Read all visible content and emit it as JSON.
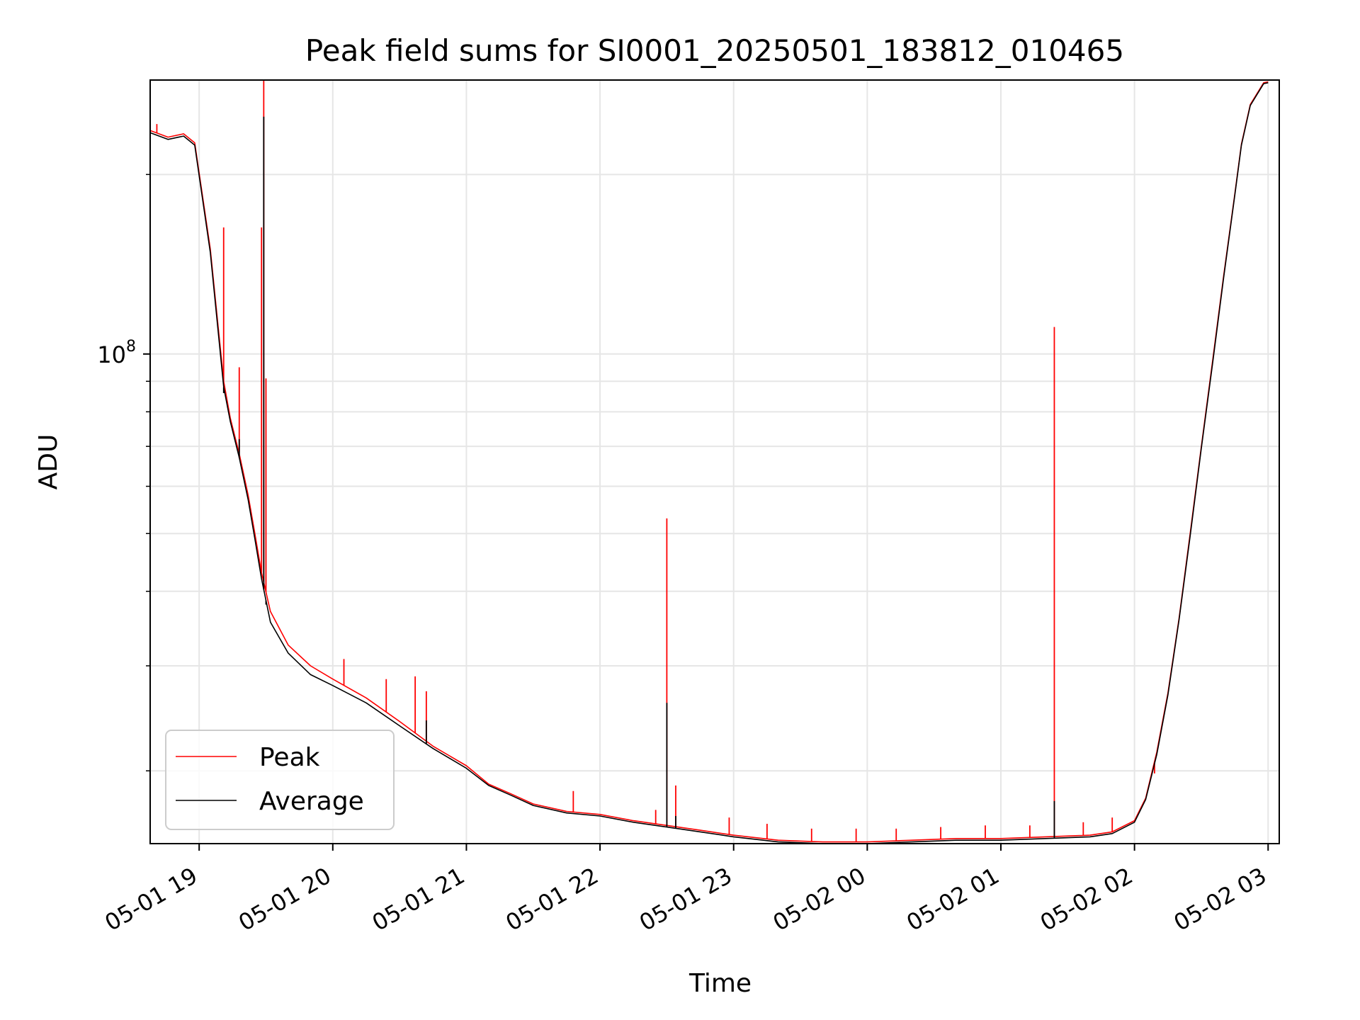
{
  "chart_data": {
    "type": "line",
    "title": "Peak field sums for SI0001_20250501_183812_010465",
    "xlabel": "Time",
    "ylabel": "ADU",
    "yscale": "log",
    "grid": true,
    "legend_position": "lower-left",
    "xlim": [
      "2025-05-01 18:38",
      "2025-05-02 03:05"
    ],
    "ylim": [
      15100000,
      288000000
    ],
    "x_ticks": [
      {
        "x": "2025-05-01 19:00",
        "label": "05-01 19"
      },
      {
        "x": "2025-05-01 20:00",
        "label": "05-01 20"
      },
      {
        "x": "2025-05-01 21:00",
        "label": "05-01 21"
      },
      {
        "x": "2025-05-01 22:00",
        "label": "05-01 22"
      },
      {
        "x": "2025-05-01 23:00",
        "label": "05-01 23"
      },
      {
        "x": "2025-05-02 00:00",
        "label": "05-02 00"
      },
      {
        "x": "2025-05-02 01:00",
        "label": "05-02 01"
      },
      {
        "x": "2025-05-02 02:00",
        "label": "05-02 02"
      },
      {
        "x": "2025-05-02 03:00",
        "label": "05-02 03"
      }
    ],
    "y_major_ticks": [
      {
        "value": 100000000,
        "label_base": "10",
        "label_exp": "8"
      }
    ],
    "y_minor_ticks": [
      20000000,
      30000000,
      40000000,
      50000000,
      60000000,
      70000000,
      80000000,
      90000000,
      200000000
    ],
    "series": [
      {
        "name": "Peak",
        "color": "#ff0000",
        "x": [
          "2025-05-01 18:38",
          "2025-05-01 18:46",
          "2025-05-01 18:53",
          "2025-05-01 18:58",
          "2025-05-01 19:05",
          "2025-05-01 19:11",
          "2025-05-01 19:14",
          "2025-05-01 19:18",
          "2025-05-01 19:22",
          "2025-05-01 19:25",
          "2025-05-01 19:28",
          "2025-05-01 19:32",
          "2025-05-01 19:40",
          "2025-05-01 19:50",
          "2025-05-01 20:00",
          "2025-05-01 20:15",
          "2025-05-01 20:30",
          "2025-05-01 20:45",
          "2025-05-01 21:00",
          "2025-05-01 21:10",
          "2025-05-01 21:20",
          "2025-05-01 21:30",
          "2025-05-01 21:45",
          "2025-05-01 22:00",
          "2025-05-01 22:15",
          "2025-05-01 22:30",
          "2025-05-01 22:45",
          "2025-05-01 23:00",
          "2025-05-01 23:20",
          "2025-05-01 23:40",
          "2025-05-02 00:00",
          "2025-05-02 00:20",
          "2025-05-02 00:40",
          "2025-05-02 01:00",
          "2025-05-02 01:20",
          "2025-05-02 01:40",
          "2025-05-02 01:50",
          "2025-05-02 02:00",
          "2025-05-02 02:05",
          "2025-05-02 02:10",
          "2025-05-02 02:15",
          "2025-05-02 02:20",
          "2025-05-02 02:25",
          "2025-05-02 02:30",
          "2025-05-02 02:35",
          "2025-05-02 02:40",
          "2025-05-02 02:45",
          "2025-05-02 02:48",
          "2025-05-02 02:52",
          "2025-05-02 02:58",
          "2025-05-02 03:00"
        ],
        "values": [
          237000000,
          231000000,
          234000000,
          226000000,
          150000000,
          90000000,
          78000000,
          68000000,
          58000000,
          50000000,
          43000000,
          37000000,
          32500000,
          30000000,
          28500000,
          26500000,
          24200000,
          22000000,
          20400000,
          19000000,
          18300000,
          17600000,
          17100000,
          16900000,
          16500000,
          16200000,
          15900000,
          15600000,
          15300000,
          15200000,
          15200000,
          15300000,
          15400000,
          15400000,
          15500000,
          15600000,
          15800000,
          16500000,
          18000000,
          21500000,
          27000000,
          36000000,
          50000000,
          70000000,
          97000000,
          135000000,
          185000000,
          225000000,
          262000000,
          285000000,
          286000000
        ],
        "spikes": [
          {
            "x": "2025-05-01 18:41",
            "y": 243000000
          },
          {
            "x": "2025-05-01 19:11",
            "y": 163000000
          },
          {
            "x": "2025-05-01 19:18",
            "y": 95000000
          },
          {
            "x": "2025-05-01 19:28",
            "y": 163000000
          },
          {
            "x": "2025-05-01 19:29",
            "y": 288000000
          },
          {
            "x": "2025-05-01 19:30",
            "y": 91000000
          },
          {
            "x": "2025-05-01 20:05",
            "y": 30800000
          },
          {
            "x": "2025-05-01 20:24",
            "y": 28500000
          },
          {
            "x": "2025-05-01 20:37",
            "y": 28800000
          },
          {
            "x": "2025-05-01 20:42",
            "y": 27200000
          },
          {
            "x": "2025-05-01 21:48",
            "y": 18500000
          },
          {
            "x": "2025-05-01 22:25",
            "y": 17200000
          },
          {
            "x": "2025-05-01 22:30",
            "y": 53000000
          },
          {
            "x": "2025-05-01 22:34",
            "y": 18900000
          },
          {
            "x": "2025-05-01 22:58",
            "y": 16700000
          },
          {
            "x": "2025-05-01 23:15",
            "y": 16300000
          },
          {
            "x": "2025-05-01 23:35",
            "y": 16000000
          },
          {
            "x": "2025-05-01 23:55",
            "y": 16000000
          },
          {
            "x": "2025-05-02 00:13",
            "y": 16000000
          },
          {
            "x": "2025-05-02 00:33",
            "y": 16100000
          },
          {
            "x": "2025-05-02 00:53",
            "y": 16200000
          },
          {
            "x": "2025-05-02 01:13",
            "y": 16200000
          },
          {
            "x": "2025-05-02 01:24",
            "y": 111000000
          },
          {
            "x": "2025-05-02 01:37",
            "y": 16400000
          },
          {
            "x": "2025-05-02 01:50",
            "y": 16700000
          },
          {
            "x": "2025-05-02 02:09",
            "y": 19800000
          }
        ]
      },
      {
        "name": "Average",
        "color": "#000000",
        "x": [
          "2025-05-01 18:38",
          "2025-05-01 18:46",
          "2025-05-01 18:53",
          "2025-05-01 18:58",
          "2025-05-01 19:05",
          "2025-05-01 19:11",
          "2025-05-01 19:14",
          "2025-05-01 19:18",
          "2025-05-01 19:22",
          "2025-05-01 19:25",
          "2025-05-01 19:28",
          "2025-05-01 19:32",
          "2025-05-01 19:40",
          "2025-05-01 19:50",
          "2025-05-01 20:00",
          "2025-05-01 20:15",
          "2025-05-01 20:30",
          "2025-05-01 20:45",
          "2025-05-01 21:00",
          "2025-05-01 21:10",
          "2025-05-01 21:20",
          "2025-05-01 21:30",
          "2025-05-01 21:45",
          "2025-05-01 22:00",
          "2025-05-01 22:15",
          "2025-05-01 22:30",
          "2025-05-01 22:45",
          "2025-05-01 23:00",
          "2025-05-01 23:20",
          "2025-05-01 23:40",
          "2025-05-02 00:00",
          "2025-05-02 00:20",
          "2025-05-02 00:40",
          "2025-05-02 01:00",
          "2025-05-02 01:20",
          "2025-05-02 01:40",
          "2025-05-02 01:50",
          "2025-05-02 02:00",
          "2025-05-02 02:05",
          "2025-05-02 02:10",
          "2025-05-02 02:15",
          "2025-05-02 02:20",
          "2025-05-02 02:25",
          "2025-05-02 02:30",
          "2025-05-02 02:35",
          "2025-05-02 02:40",
          "2025-05-02 02:45",
          "2025-05-02 02:48",
          "2025-05-02 02:52",
          "2025-05-02 02:58",
          "2025-05-02 03:00"
        ],
        "values": [
          235000000,
          229000000,
          232000000,
          224000000,
          148000000,
          88000000,
          77000000,
          67000000,
          57000000,
          49000000,
          42000000,
          35500000,
          31500000,
          29000000,
          27800000,
          26000000,
          23800000,
          21800000,
          20200000,
          18900000,
          18200000,
          17500000,
          17000000,
          16800000,
          16400000,
          16100000,
          15800000,
          15500000,
          15200000,
          15100000,
          15100000,
          15200000,
          15300000,
          15300000,
          15400000,
          15500000,
          15700000,
          16400000,
          17900000,
          21300000,
          26800000,
          35800000,
          49500000,
          69500000,
          96000000,
          134000000,
          184000000,
          224000000,
          261000000,
          284000000,
          285000000
        ],
        "spikes": [
          {
            "x": "2025-05-01 19:11",
            "y": 86000000
          },
          {
            "x": "2025-05-01 19:18",
            "y": 72000000
          },
          {
            "x": "2025-05-01 19:29",
            "y": 250000000
          },
          {
            "x": "2025-05-01 19:30",
            "y": 38000000
          },
          {
            "x": "2025-05-01 20:42",
            "y": 24300000
          },
          {
            "x": "2025-05-01 22:30",
            "y": 26000000
          },
          {
            "x": "2025-05-01 22:34",
            "y": 16800000
          },
          {
            "x": "2025-05-02 01:24",
            "y": 17800000
          }
        ]
      }
    ]
  }
}
